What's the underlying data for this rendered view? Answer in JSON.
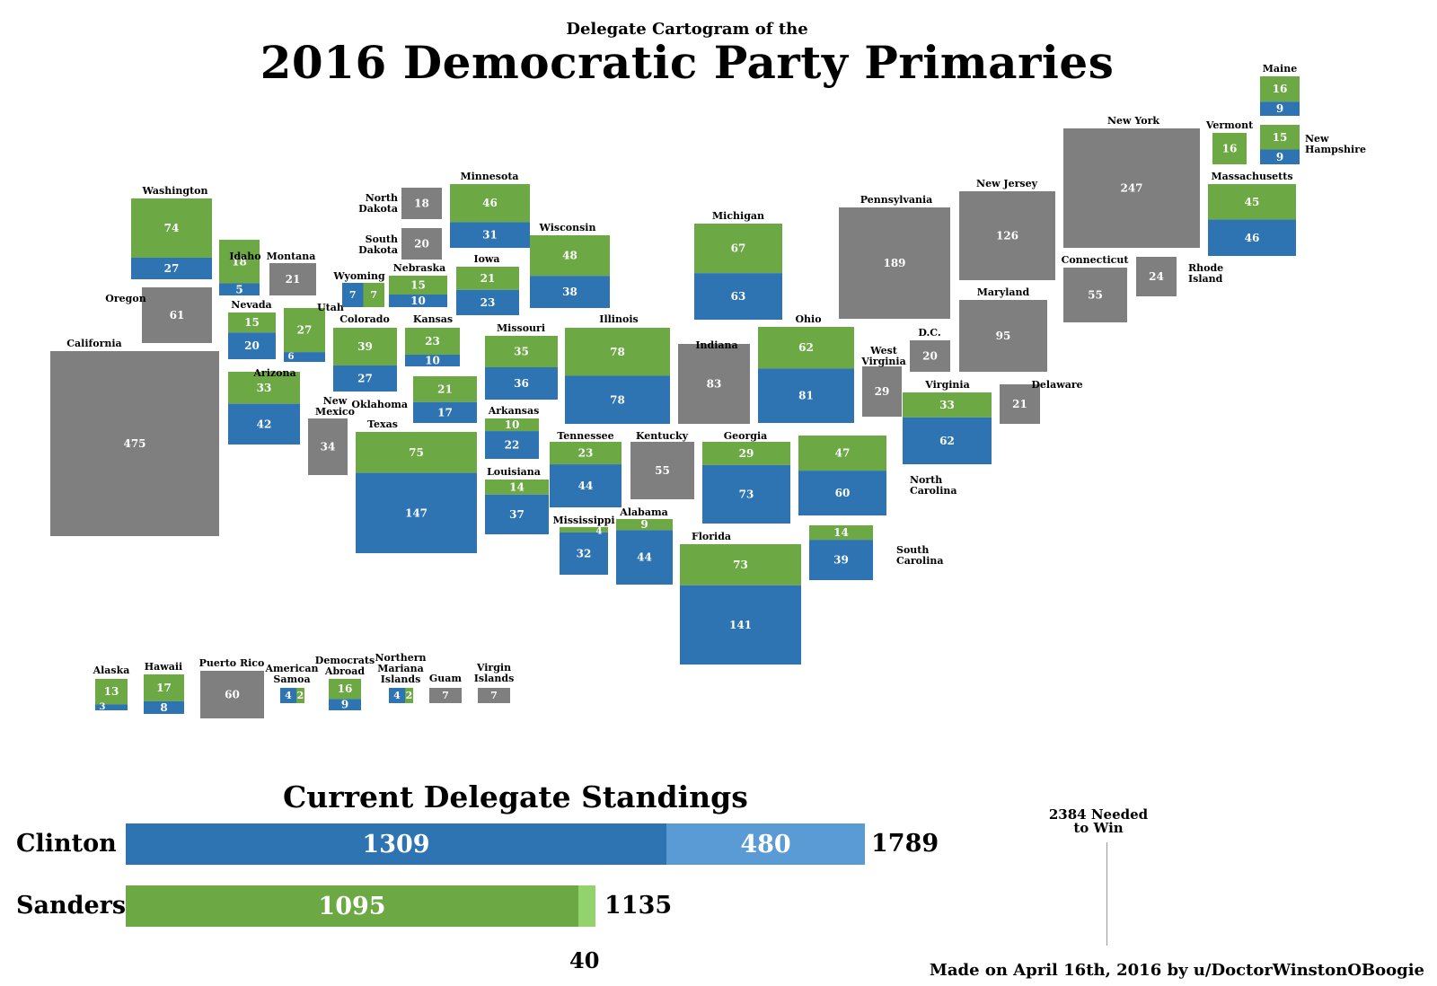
{
  "header": {
    "subtitle": "Delegate Cartogram of the",
    "title": "2016 Democratic Party Primaries"
  },
  "colors": {
    "clinton": "#2e74b2",
    "sanders": "#6ca945",
    "remaining": "#7f7f7f",
    "clinton_super": "#5b9bd5",
    "sanders_super": "#92d36e"
  },
  "states": [
    {
      "name": "Washington",
      "result": "split",
      "clinton": 27,
      "sanders": 74
    },
    {
      "name": "Oregon",
      "result": "remaining",
      "remaining": 61
    },
    {
      "name": "California",
      "result": "remaining",
      "remaining": 475
    },
    {
      "name": "Idaho",
      "result": "split",
      "clinton": 5,
      "sanders": 18
    },
    {
      "name": "Montana",
      "result": "remaining",
      "remaining": 21
    },
    {
      "name": "Nevada",
      "result": "split",
      "clinton": 20,
      "sanders": 15
    },
    {
      "name": "Utah",
      "result": "split",
      "clinton": 6,
      "sanders": 27
    },
    {
      "name": "Arizona",
      "result": "split",
      "clinton": 42,
      "sanders": 33
    },
    {
      "name": "Wyoming",
      "result": "split",
      "clinton": 7,
      "sanders": 7
    },
    {
      "name": "Colorado",
      "result": "split",
      "clinton": 27,
      "sanders": 39
    },
    {
      "name": "New Mexico",
      "result": "remaining",
      "remaining": 34
    },
    {
      "name": "North Dakota",
      "result": "remaining",
      "remaining": 18
    },
    {
      "name": "South Dakota",
      "result": "remaining",
      "remaining": 20
    },
    {
      "name": "Nebraska",
      "result": "split",
      "clinton": 10,
      "sanders": 15
    },
    {
      "name": "Kansas",
      "result": "split",
      "clinton": 10,
      "sanders": 23
    },
    {
      "name": "Oklahoma",
      "result": "split",
      "clinton": 17,
      "sanders": 21
    },
    {
      "name": "Texas",
      "result": "split",
      "clinton": 147,
      "sanders": 75
    },
    {
      "name": "Minnesota",
      "result": "split",
      "clinton": 31,
      "sanders": 46
    },
    {
      "name": "Iowa",
      "result": "split",
      "clinton": 23,
      "sanders": 21
    },
    {
      "name": "Missouri",
      "result": "split",
      "clinton": 36,
      "sanders": 35
    },
    {
      "name": "Arkansas",
      "result": "split",
      "clinton": 22,
      "sanders": 10
    },
    {
      "name": "Louisiana",
      "result": "split",
      "clinton": 37,
      "sanders": 14
    },
    {
      "name": "Wisconsin",
      "result": "split",
      "clinton": 38,
      "sanders": 48
    },
    {
      "name": "Illinois",
      "result": "split",
      "clinton": 78,
      "sanders": 78
    },
    {
      "name": "Michigan",
      "result": "split",
      "clinton": 63,
      "sanders": 67
    },
    {
      "name": "Indiana",
      "result": "remaining",
      "remaining": 83
    },
    {
      "name": "Kentucky",
      "result": "remaining",
      "remaining": 55
    },
    {
      "name": "Tennessee",
      "result": "split",
      "clinton": 44,
      "sanders": 23
    },
    {
      "name": "Mississippi",
      "result": "split",
      "clinton": 32,
      "sanders": 4
    },
    {
      "name": "Alabama",
      "result": "split",
      "clinton": 44,
      "sanders": 9
    },
    {
      "name": "Ohio",
      "result": "split",
      "clinton": 81,
      "sanders": 62
    },
    {
      "name": "Georgia",
      "result": "split",
      "clinton": 73,
      "sanders": 29
    },
    {
      "name": "Florida",
      "result": "split",
      "clinton": 141,
      "sanders": 73
    },
    {
      "name": "West Virginia",
      "result": "remaining",
      "remaining": 29
    },
    {
      "name": "Virginia",
      "result": "split",
      "clinton": 62,
      "sanders": 33
    },
    {
      "name": "North Carolina",
      "result": "split",
      "clinton": 60,
      "sanders": 47
    },
    {
      "name": "South Carolina",
      "result": "split",
      "clinton": 39,
      "sanders": 14
    },
    {
      "name": "Pennsylvania",
      "result": "remaining",
      "remaining": 189
    },
    {
      "name": "D.C.",
      "result": "remaining",
      "remaining": 20
    },
    {
      "name": "Maryland",
      "result": "remaining",
      "remaining": 95
    },
    {
      "name": "Delaware",
      "result": "remaining",
      "remaining": 21
    },
    {
      "name": "New Jersey",
      "result": "remaining",
      "remaining": 126
    },
    {
      "name": "New York",
      "result": "remaining",
      "remaining": 247
    },
    {
      "name": "Connecticut",
      "result": "remaining",
      "remaining": 55
    },
    {
      "name": "Rhode Island",
      "result": "remaining",
      "remaining": 24
    },
    {
      "name": "Vermont",
      "result": "sanders",
      "sanders": 16
    },
    {
      "name": "New Hampshire",
      "result": "split",
      "clinton": 9,
      "sanders": 15
    },
    {
      "name": "Maine",
      "result": "split",
      "clinton": 9,
      "sanders": 16
    },
    {
      "name": "Massachusetts",
      "result": "split",
      "clinton": 46,
      "sanders": 45
    },
    {
      "name": "Alaska",
      "result": "split",
      "clinton": 3,
      "sanders": 13
    },
    {
      "name": "Hawaii",
      "result": "split",
      "clinton": 8,
      "sanders": 17
    },
    {
      "name": "Puerto Rico",
      "result": "remaining",
      "remaining": 60
    },
    {
      "name": "American Samoa",
      "result": "split",
      "clinton": 4,
      "sanders": 2
    },
    {
      "name": "Democrats Abroad",
      "result": "split",
      "clinton": 9,
      "sanders": 16
    },
    {
      "name": "Northern Mariana Islands",
      "result": "split",
      "clinton": 4,
      "sanders": 2
    },
    {
      "name": "Guam",
      "result": "remaining",
      "remaining": 7
    },
    {
      "name": "Virgin Islands",
      "result": "remaining",
      "remaining": 7
    }
  ],
  "standings": {
    "title": "Current Delegate Standings",
    "clinton": {
      "label": "Clinton",
      "pledged": 1309,
      "super": 480,
      "total": 1789
    },
    "sanders": {
      "label": "Sanders",
      "pledged": 1095,
      "super": 40,
      "total": 1135
    },
    "needed_label": "2384 Needed to Win",
    "needed": 2384
  },
  "credit": "Made on April 16th, 2016 by u/DoctorWinstonOBoogie",
  "chart_data": [
    {
      "type": "bar",
      "title": "Current Delegate Standings",
      "categories": [
        "Clinton",
        "Sanders"
      ],
      "series": [
        {
          "values": [
            1309,
            1095
          ]
        },
        {
          "values": [
            480,
            40
          ]
        }
      ],
      "totals": [
        1789,
        1135
      ],
      "target": 2384
    }
  ]
}
